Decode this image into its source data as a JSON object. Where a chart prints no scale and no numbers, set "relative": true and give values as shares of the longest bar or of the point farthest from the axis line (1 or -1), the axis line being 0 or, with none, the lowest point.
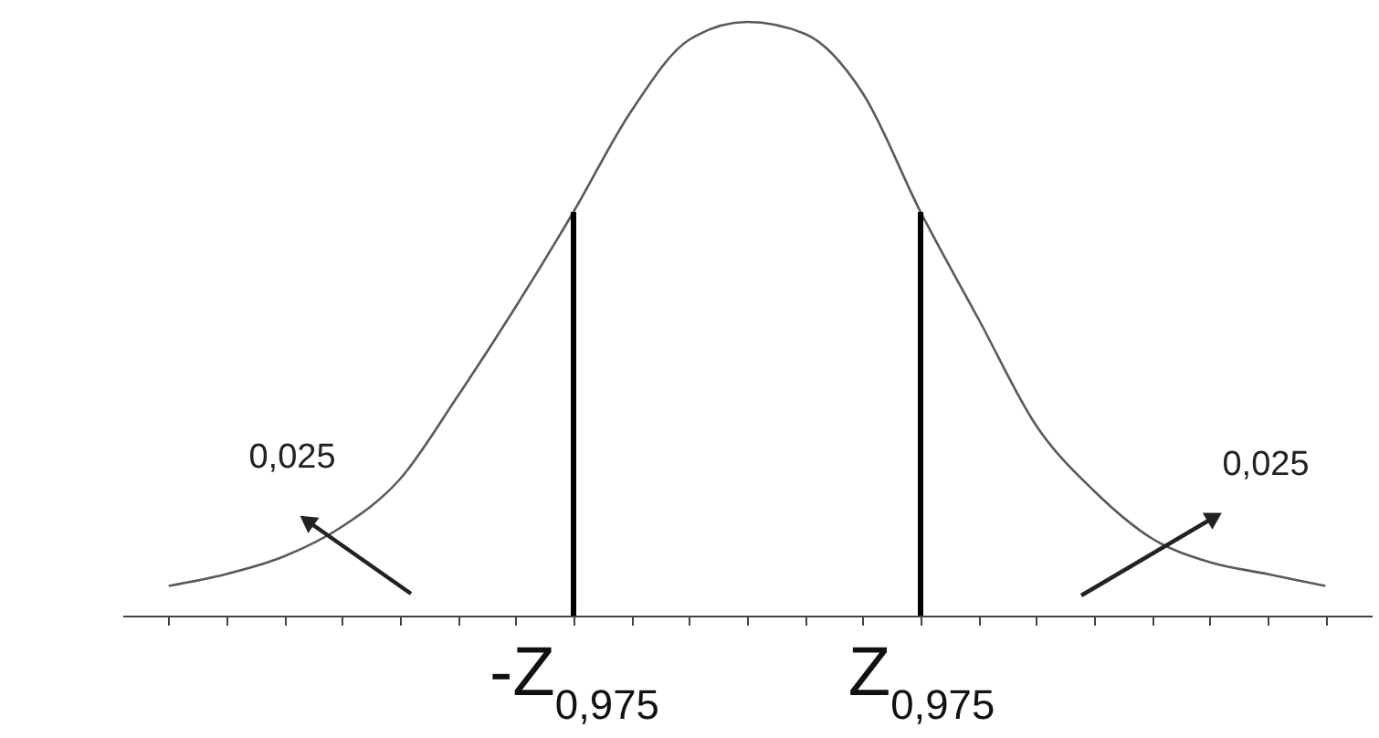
{
  "chart_data": {
    "type": "line",
    "relative": true,
    "categories": [
      null,
      null,
      null,
      null,
      null,
      null,
      null,
      "-Z$_{0,975}$",
      null,
      null,
      null,
      null,
      null,
      "Z$_{0,975}$",
      null,
      null,
      null,
      null,
      null,
      null,
      null
    ],
    "series": [
      {
        "color": "#5a5a5a",
        "values": [
          0.05,
          0.07,
          0.1,
          0.15,
          0.23,
          0.37,
          0.52,
          0.68,
          0.85,
          0.97,
          1,
          0.98,
          0.88,
          0.68,
          0.5,
          0.32,
          0.21,
          0.13,
          0.09,
          0.07,
          0.05
        ]
      }
    ],
    "ref_lines": [
      {
        "axis": "x",
        "value": "-Z$_{0,975}$",
        "color": "#000000"
      },
      {
        "axis": "x",
        "value": "Z$_{0,975}$",
        "color": "#000000"
      }
    ],
    "annotations": [
      "0,025",
      "0,025"
    ],
    "grid": false,
    "marker": "none",
    "line_style": "solid",
    "tick_labels": "x"
  }
}
